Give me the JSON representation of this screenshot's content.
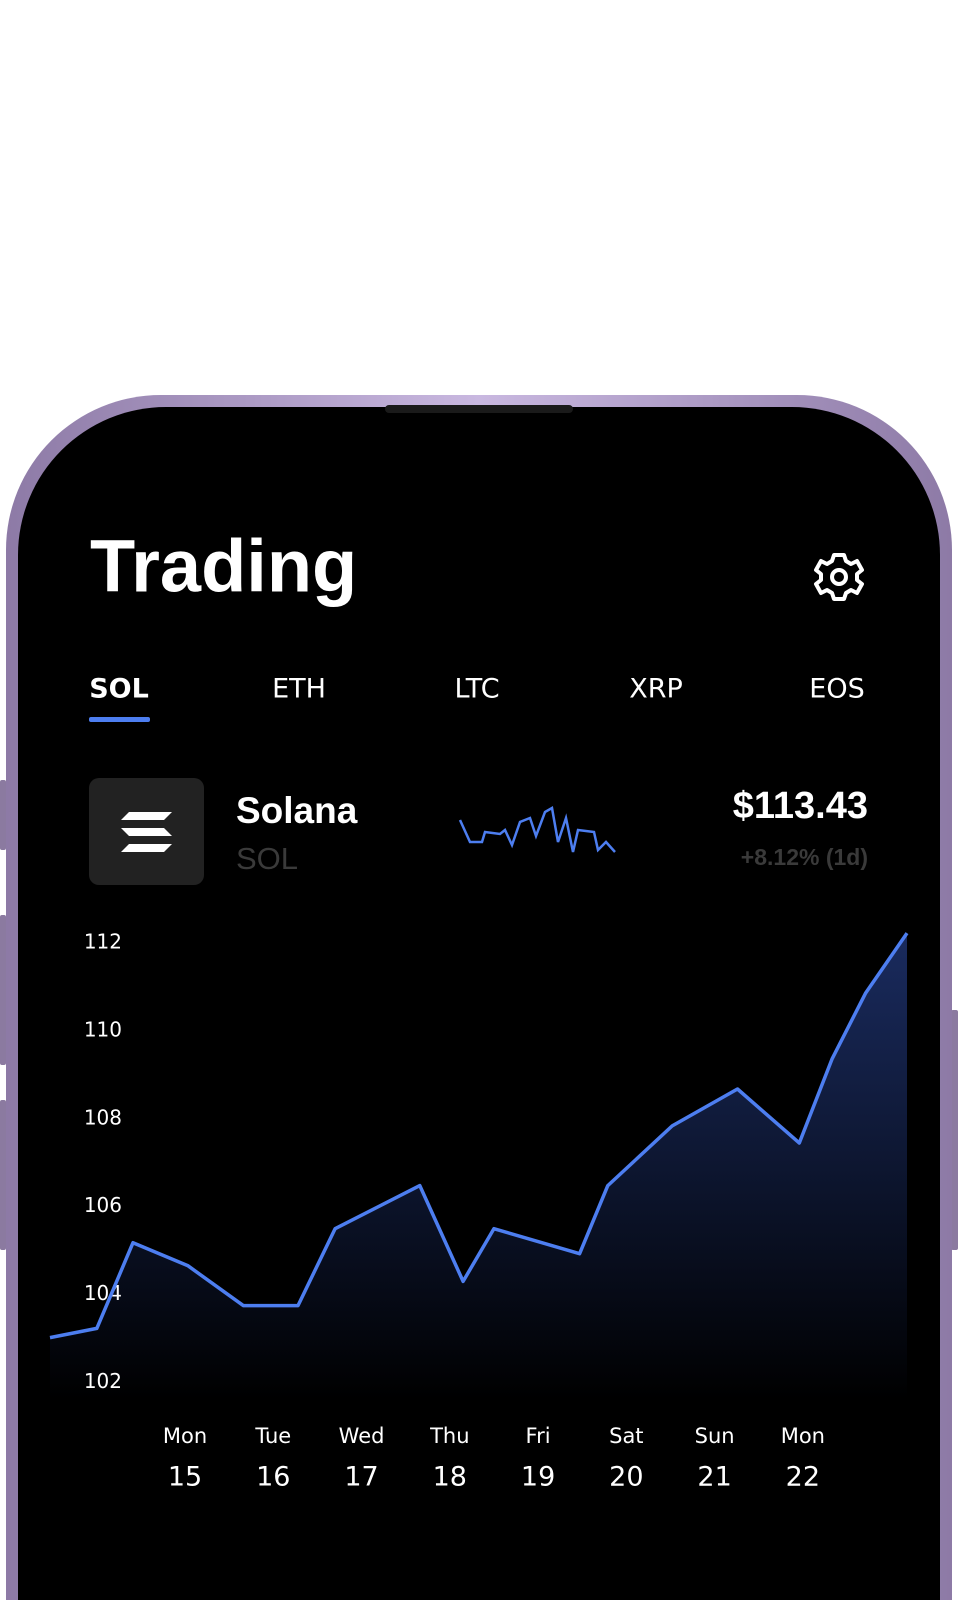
{
  "header": {
    "title": "Trading"
  },
  "tabs": [
    "SOL",
    "ETH",
    "LTC",
    "XRP",
    "EOS"
  ],
  "active_tab": 0,
  "asset": {
    "name": "Solana",
    "symbol": "SOL",
    "price": "$113.43",
    "change": "+8.12% (1d)"
  },
  "chart": {
    "type": "line",
    "color": "#4d7ef0",
    "x": [
      -1.53,
      -1.0,
      -0.59,
      0.03,
      0.66,
      1.28,
      1.7,
      2.66,
      3.15,
      3.5,
      4.47,
      4.79,
      5.52,
      6.26,
      6.96,
      7.33,
      7.71,
      8.18
    ],
    "values": [
      103.02,
      103.23,
      105.18,
      104.66,
      103.75,
      103.75,
      105.5,
      106.48,
      104.3,
      105.5,
      104.93,
      106.48,
      107.84,
      108.68,
      107.45,
      109.36,
      110.86,
      112.23
    ],
    "xlim": [
      -1.53,
      8.18
    ],
    "ylim": [
      101.6,
      112.3
    ],
    "yticks": [
      102,
      104,
      106,
      108,
      110,
      112
    ],
    "days": [
      {
        "weekday": "Mon",
        "date": "15"
      },
      {
        "weekday": "Tue",
        "date": "16"
      },
      {
        "weekday": "Wed",
        "date": "17"
      },
      {
        "weekday": "Thu",
        "date": "18"
      },
      {
        "weekday": "Fri",
        "date": "19"
      },
      {
        "weekday": "Sat",
        "date": "20"
      },
      {
        "weekday": "Sun",
        "date": "21"
      },
      {
        "weekday": "Mon",
        "date": "22"
      }
    ]
  }
}
